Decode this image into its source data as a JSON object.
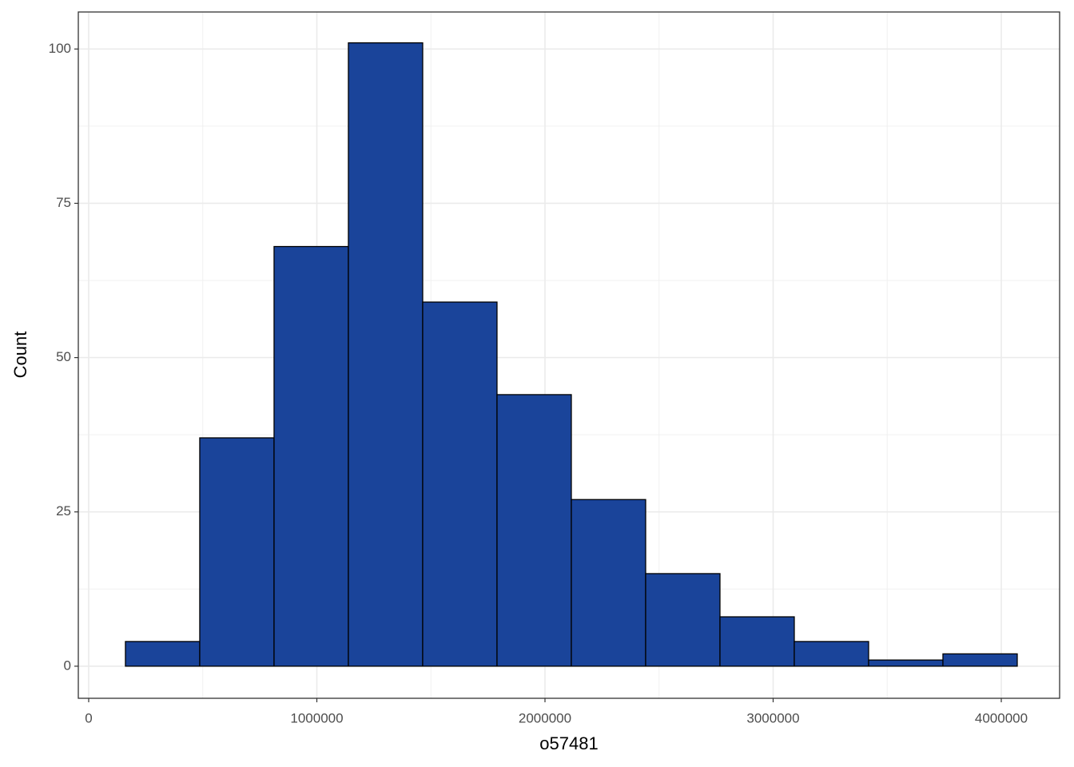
{
  "chart_data": {
    "type": "histogram",
    "x_label": "o57481",
    "y_label": "Count",
    "bins": [
      161000,
      486750,
      812500,
      1138250,
      1464000,
      1789750,
      2115500,
      2441250,
      2767000,
      3092750,
      3418500,
      3744250,
      4070000
    ],
    "values": [
      4,
      37,
      68,
      101,
      59,
      44,
      27,
      15,
      8,
      4,
      1,
      2
    ],
    "color": "#1a449a",
    "edgecolor": "#000000",
    "xlim": [
      -45500,
      4255700
    ],
    "xticks": [
      0,
      1000000,
      2000000,
      3000000,
      4000000
    ],
    "ylim": [
      -5.2,
      106
    ],
    "yticks": [
      0,
      25,
      50,
      75,
      100
    ],
    "grid": true
  }
}
